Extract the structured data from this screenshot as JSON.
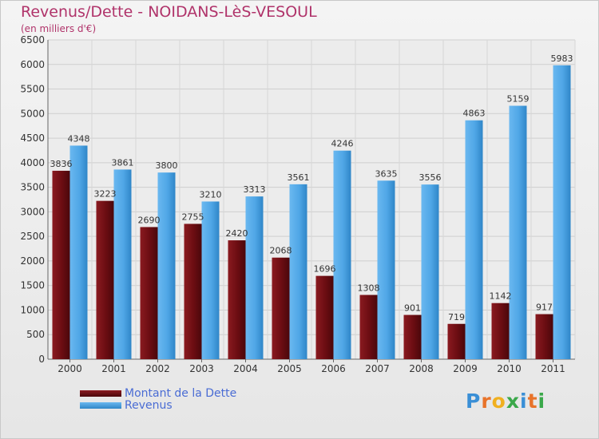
{
  "header": {
    "title": "Revenus/Dette - NOIDANS-LèS-VESOUL",
    "subtitle": "(en milliers d'€)"
  },
  "colors": {
    "debt": "#6b0d12",
    "revenue": "#4fa6e6",
    "title": "#b0336a",
    "legend_text": "#4a6cd4"
  },
  "chart_data": {
    "type": "bar",
    "categories": [
      "2000",
      "2001",
      "2002",
      "2003",
      "2004",
      "2005",
      "2006",
      "2007",
      "2008",
      "2009",
      "2010",
      "2011"
    ],
    "series": [
      {
        "name": "Montant de la Dette",
        "values": [
          3836,
          3223,
          2690,
          2755,
          2420,
          2068,
          1696,
          1308,
          901,
          719,
          1142,
          917
        ]
      },
      {
        "name": "Revenus",
        "values": [
          4348,
          3861,
          3800,
          3210,
          3313,
          3561,
          4246,
          3635,
          3556,
          4863,
          5159,
          5983
        ]
      }
    ],
    "ylim": [
      0,
      6500
    ],
    "yticks": [
      0,
      500,
      1000,
      1500,
      2000,
      2500,
      3000,
      3500,
      4000,
      4500,
      5000,
      5500,
      6000,
      6500
    ],
    "grid": true,
    "legend_position": "bottom-left"
  },
  "legend": {
    "items": [
      {
        "label": "Montant de la Dette"
      },
      {
        "label": "Revenus"
      }
    ]
  },
  "logo": {
    "text": "Proxiti",
    "letters": [
      "P",
      "r",
      "o",
      "x",
      "i",
      "t",
      "i"
    ],
    "letter_colors": [
      "#3a8fd6",
      "#e8732a",
      "#f0b020",
      "#3aa84a",
      "#3a8fd6",
      "#e8732a",
      "#3aa84a"
    ]
  }
}
